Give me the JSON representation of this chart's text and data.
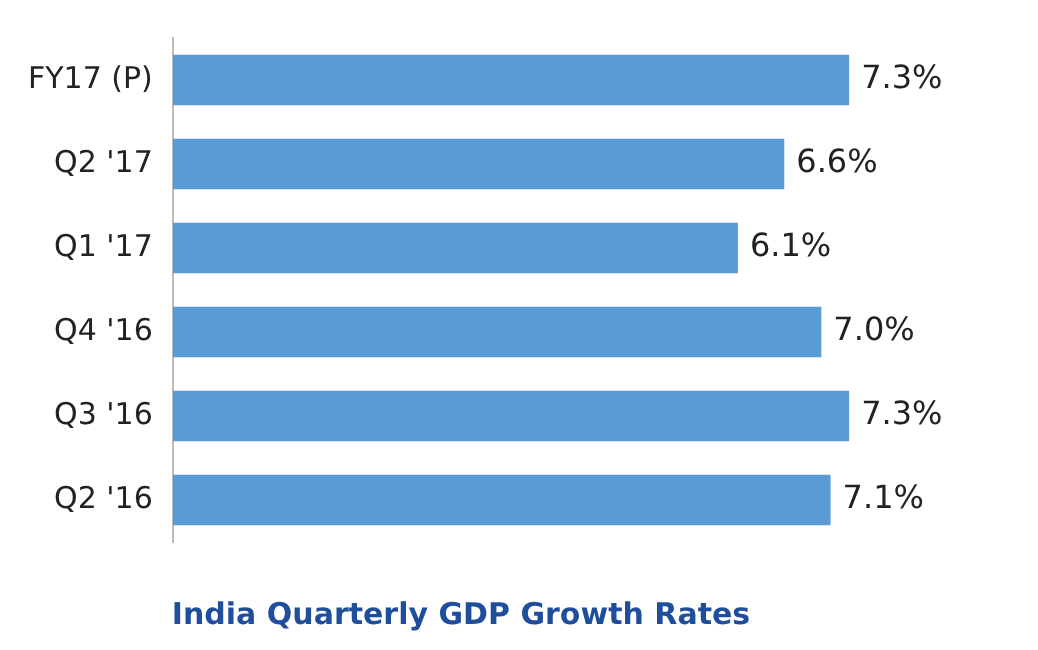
{
  "chart_data": {
    "type": "bar",
    "orientation": "horizontal",
    "title": "India Quarterly GDP Growth Rates",
    "categories": [
      "FY17 (P)",
      "Q2 '17",
      "Q1 '17",
      "Q4 '16",
      "Q3 '16",
      "Q2 '16"
    ],
    "values": [
      7.3,
      6.6,
      6.1,
      7.0,
      7.3,
      7.1
    ],
    "value_labels": [
      "7.3%",
      "6.6%",
      "6.1%",
      "7.0%",
      "7.3%",
      "7.1%"
    ],
    "color": "#5b9bd5",
    "tick_labels": "y",
    "grid": false,
    "legend": false
  }
}
